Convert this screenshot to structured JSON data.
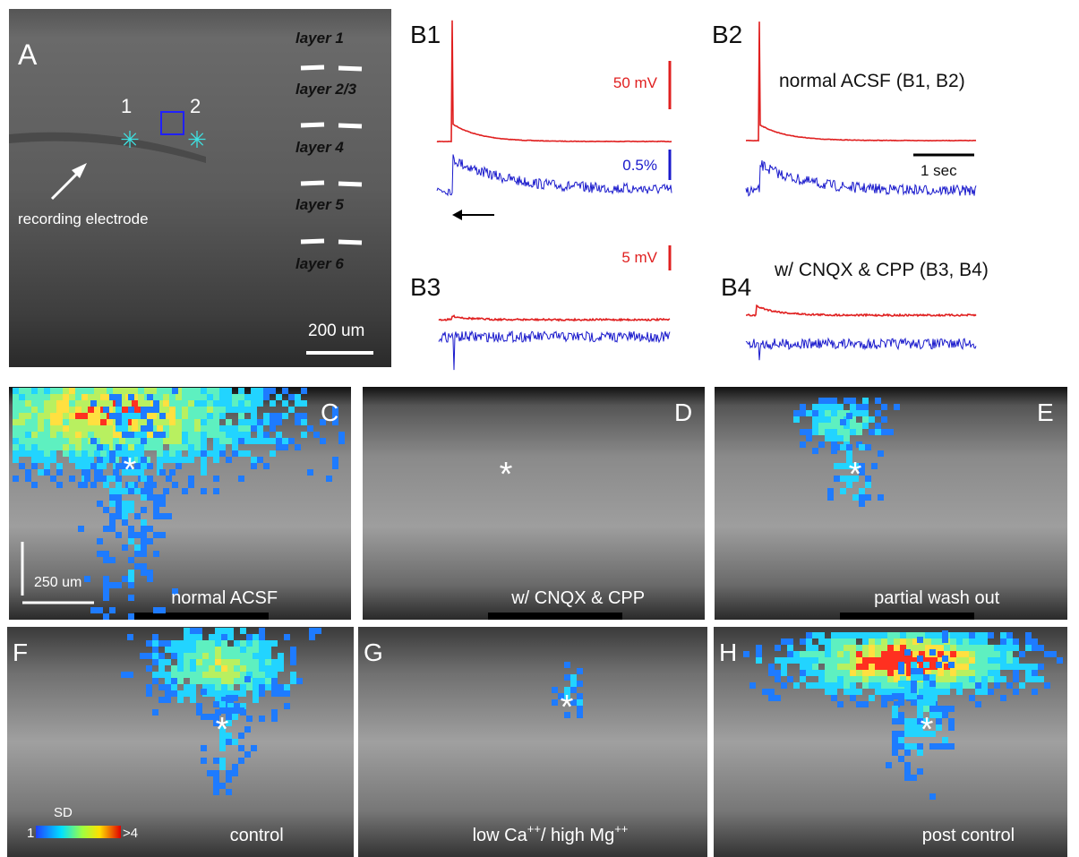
{
  "panel_a": {
    "label": "A",
    "sites": [
      "1",
      "2"
    ],
    "electrode": "recording electrode",
    "layers": [
      "layer 1",
      "layer 2/3",
      "layer 4",
      "layer 5",
      "layer 6"
    ],
    "scale_bar": "200 um"
  },
  "panel_b": {
    "labels": [
      "B1",
      "B2",
      "B3",
      "B4"
    ],
    "scale_50mv": "50 mV",
    "scale_pct": "0.5%",
    "scale_time": "1 sec",
    "scale_5mv": "5 mV",
    "condition_1": "normal ACSF (B1, B2)",
    "condition_2": "w/ CNQX & CPP (B3, B4)"
  },
  "images": [
    {
      "label": "C",
      "caption": "normal ACSF",
      "marker": "*"
    },
    {
      "label": "D",
      "caption": "w/ CNQX & CPP",
      "marker": "*"
    },
    {
      "label": "E",
      "caption": "partial wash out",
      "marker": "*"
    },
    {
      "label": "F",
      "caption": "control",
      "marker": "*"
    },
    {
      "label": "G",
      "caption": [
        "low Ca",
        "++",
        "/ high Mg",
        "++"
      ],
      "marker": "*"
    },
    {
      "label": "H",
      "caption": "post control",
      "marker": "*"
    }
  ],
  "scale_250": "250 um",
  "colorbar": {
    "title": "SD",
    "ticks": [
      1,
      {
        "value": 4,
        "label": ">4"
      }
    ]
  }
}
